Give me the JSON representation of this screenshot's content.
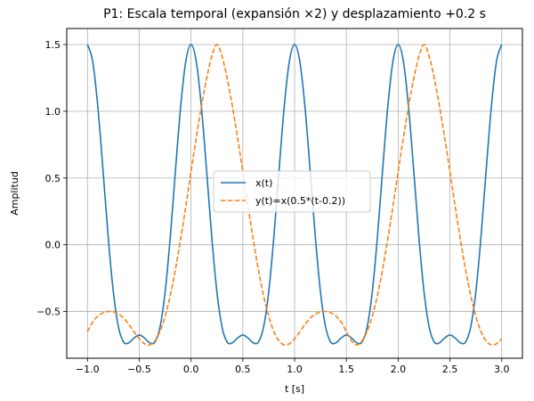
{
  "chart_data": {
    "type": "line",
    "title": "P1: Escala temporal (expansión ×2) y desplazamiento +0.2 s",
    "xlabel": "t [s]",
    "ylabel": "Amplitud",
    "xlim": [
      -1.2,
      3.2
    ],
    "ylim": [
      -0.85,
      1.62
    ],
    "xticks": [
      -1.0,
      -0.5,
      0.0,
      0.5,
      1.0,
      1.5,
      2.0,
      2.5,
      3.0
    ],
    "xtick_labels": [
      "−1.0",
      "−0.5",
      "0.0",
      "0.5",
      "1.0",
      "1.5",
      "2.0",
      "2.5",
      "3.0"
    ],
    "yticks": [
      -0.5,
      0.0,
      0.5,
      1.0,
      1.5
    ],
    "ytick_labels": [
      "−0.5",
      "0.0",
      "0.5",
      "1.0",
      "1.5"
    ],
    "grid": true,
    "legend_position": "center",
    "series": [
      {
        "name": "x(t)",
        "color": "#1f77b4",
        "style": "solid",
        "x": [
          -1.0,
          -0.95,
          -0.9,
          -0.85,
          -0.8,
          -0.75,
          -0.7,
          -0.65,
          -0.6,
          -0.55,
          -0.5,
          -0.45,
          -0.4,
          -0.35,
          -0.3,
          -0.25,
          -0.2,
          -0.15,
          -0.1,
          -0.05,
          0.0,
          0.05,
          0.1,
          0.15,
          0.2,
          0.25,
          0.3,
          0.35,
          0.4,
          0.45,
          0.5,
          0.55,
          0.6,
          0.65,
          0.7,
          0.75,
          0.8,
          0.85,
          0.9,
          0.95,
          1.0,
          1.05,
          1.1,
          1.15,
          1.2,
          1.25,
          1.3,
          1.35,
          1.4,
          1.45,
          1.5,
          1.55,
          1.6,
          1.65,
          1.7,
          1.75,
          1.8,
          1.85,
          1.9,
          1.95,
          2.0,
          2.05,
          2.1,
          2.15,
          2.2,
          2.25,
          2.3,
          2.35,
          2.4,
          2.45,
          2.5,
          2.55,
          2.6,
          2.65,
          2.7,
          2.75,
          2.8,
          2.85,
          2.9,
          2.95,
          3.0
        ],
        "y": [
          1.5,
          1.376,
          1.035,
          0.56,
          0.06,
          -0.354,
          -0.618,
          -0.73,
          -0.734,
          -0.698,
          -0.676,
          -0.698,
          -0.734,
          -0.73,
          -0.618,
          -0.354,
          0.06,
          0.56,
          1.035,
          1.376,
          1.5,
          1.376,
          1.035,
          0.56,
          0.06,
          -0.354,
          -0.618,
          -0.73,
          -0.734,
          -0.698,
          -0.676,
          -0.698,
          -0.734,
          -0.73,
          -0.618,
          -0.354,
          0.06,
          0.56,
          1.035,
          1.376,
          1.5,
          1.376,
          1.035,
          0.56,
          0.06,
          -0.354,
          -0.618,
          -0.73,
          -0.734,
          -0.698,
          -0.676,
          -0.698,
          -0.734,
          -0.73,
          -0.618,
          -0.354,
          0.06,
          0.56,
          1.035,
          1.376,
          1.5,
          1.376,
          1.035,
          0.56,
          0.06,
          -0.354,
          -0.618,
          -0.73,
          -0.734,
          -0.698,
          -0.676,
          -0.698,
          -0.734,
          -0.73,
          -0.618,
          -0.354,
          0.06,
          0.56,
          1.035,
          1.376,
          1.5
        ]
      },
      {
        "name": "y(t)=x(0.5*(t-0.2))",
        "color": "#ff7f0e",
        "style": "dashed",
        "x": [
          -1.0,
          -0.95,
          -0.9,
          -0.85,
          -0.8,
          -0.75,
          -0.7,
          -0.65,
          -0.6,
          -0.55,
          -0.5,
          -0.45,
          -0.4,
          -0.35,
          -0.3,
          -0.25,
          -0.2,
          -0.15,
          -0.1,
          -0.05,
          0.0,
          0.05,
          0.1,
          0.15,
          0.2,
          0.25,
          0.3,
          0.35,
          0.4,
          0.45,
          0.5,
          0.55,
          0.6,
          0.65,
          0.7,
          0.75,
          0.8,
          0.85,
          0.9,
          0.95,
          1.0,
          1.05,
          1.1,
          1.15,
          1.2,
          1.25,
          1.3,
          1.35,
          1.4,
          1.45,
          1.5,
          1.55,
          1.6,
          1.65,
          1.7,
          1.75,
          1.8,
          1.85,
          1.9,
          1.95,
          2.0,
          2.05,
          2.1,
          2.15,
          2.2,
          2.25,
          2.3,
          2.35,
          2.4,
          2.45,
          2.5,
          2.55,
          2.6,
          2.65,
          2.7,
          2.75,
          2.8,
          2.85,
          2.9,
          2.95,
          3.0
        ],
        "y": [
          -0.651,
          -0.58,
          -0.534,
          -0.51,
          -0.5,
          -0.503,
          -0.519,
          -0.55,
          -0.597,
          -0.652,
          -0.704,
          -0.741,
          -0.75,
          -0.721,
          -0.65,
          -0.535,
          -0.378,
          -0.182,
          0.044,
          0.291,
          0.547,
          0.799,
          1.035,
          1.243,
          1.41,
          1.5,
          1.41,
          1.243,
          1.035,
          0.799,
          0.547,
          0.291,
          0.044,
          -0.182,
          -0.378,
          -0.535,
          -0.65,
          -0.721,
          -0.75,
          -0.741,
          -0.704,
          -0.652,
          -0.597,
          -0.55,
          -0.519,
          -0.503,
          -0.5,
          -0.51,
          -0.534,
          -0.58,
          -0.651,
          -0.72,
          -0.75,
          -0.721,
          -0.65,
          -0.535,
          -0.378,
          -0.182,
          0.044,
          0.291,
          0.547,
          0.799,
          1.035,
          1.243,
          1.41,
          1.5,
          1.41,
          1.243,
          1.035,
          0.799,
          0.547,
          0.291,
          0.044,
          -0.182,
          -0.378,
          -0.535,
          -0.65,
          -0.721,
          -0.75,
          -0.741,
          -0.704
        ]
      }
    ]
  }
}
